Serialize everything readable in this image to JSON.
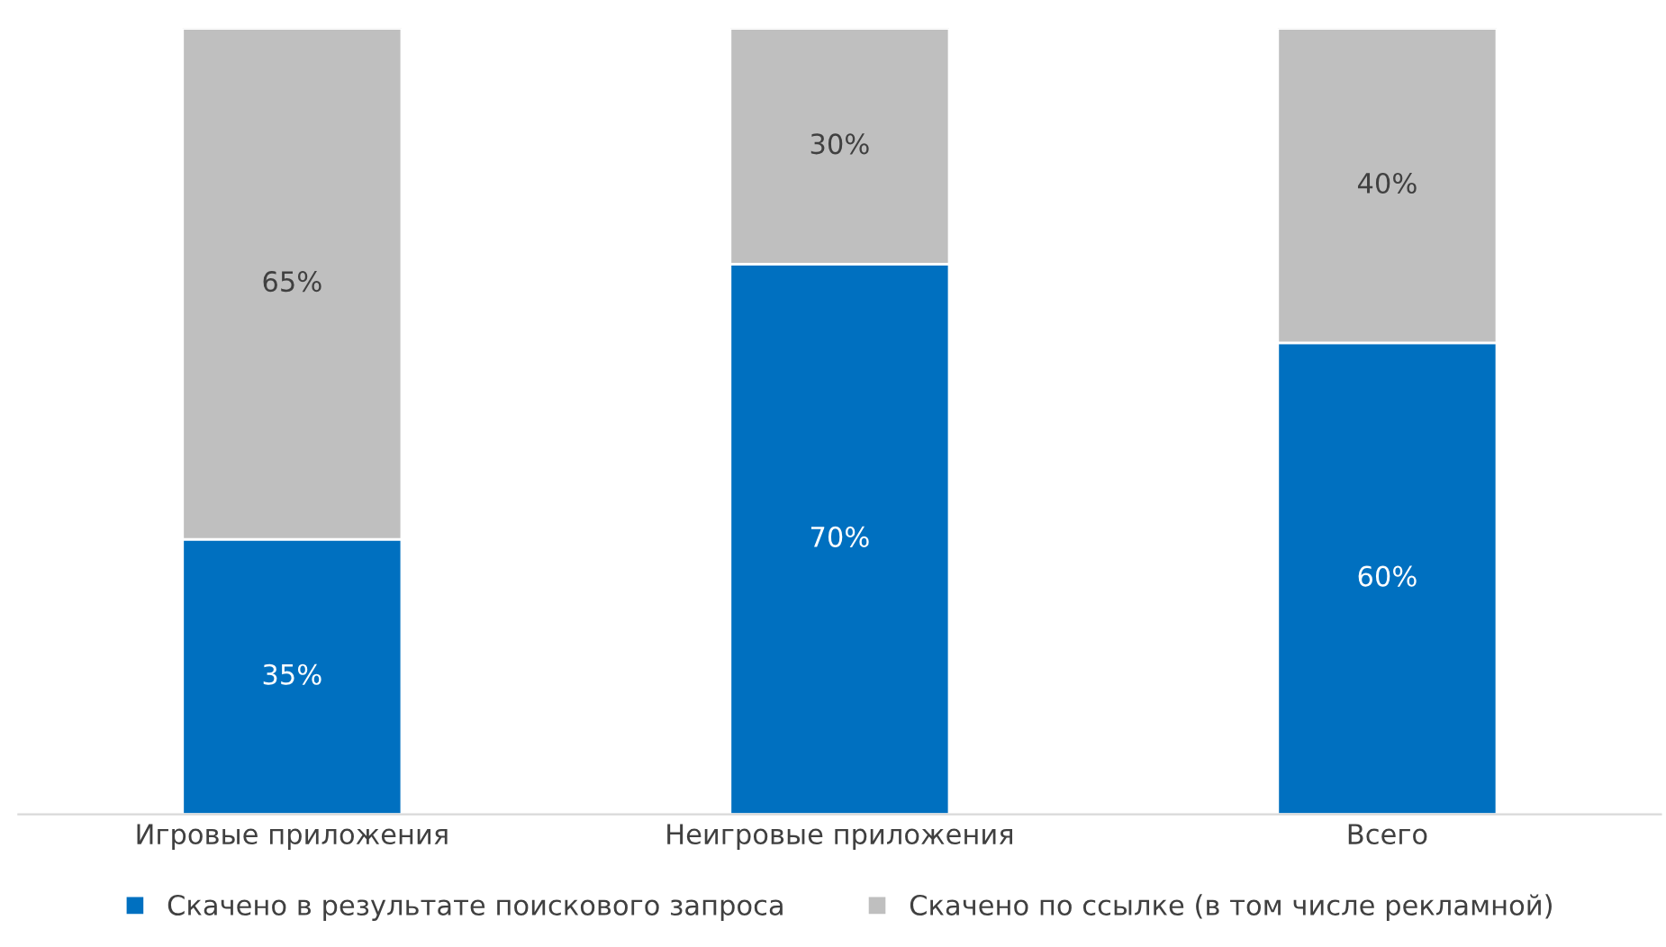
{
  "chart_data": {
    "type": "bar",
    "stacked": true,
    "categories": [
      "Игровые приложения",
      "Неигровые приложения",
      "Всего"
    ],
    "series": [
      {
        "name": "Скачено в результате поискового запроса",
        "color": "#0070c0",
        "values": [
          35,
          70,
          60
        ],
        "value_labels": [
          "35%",
          "70%",
          "60%"
        ]
      },
      {
        "name": "Скачено по ссылке (в том числе рекламной)",
        "color": "#bfbfbf",
        "values": [
          65,
          30,
          40
        ],
        "value_labels": [
          "65%",
          "30%",
          "40%"
        ]
      }
    ],
    "legend": "bottom",
    "tick_labels": "x"
  }
}
